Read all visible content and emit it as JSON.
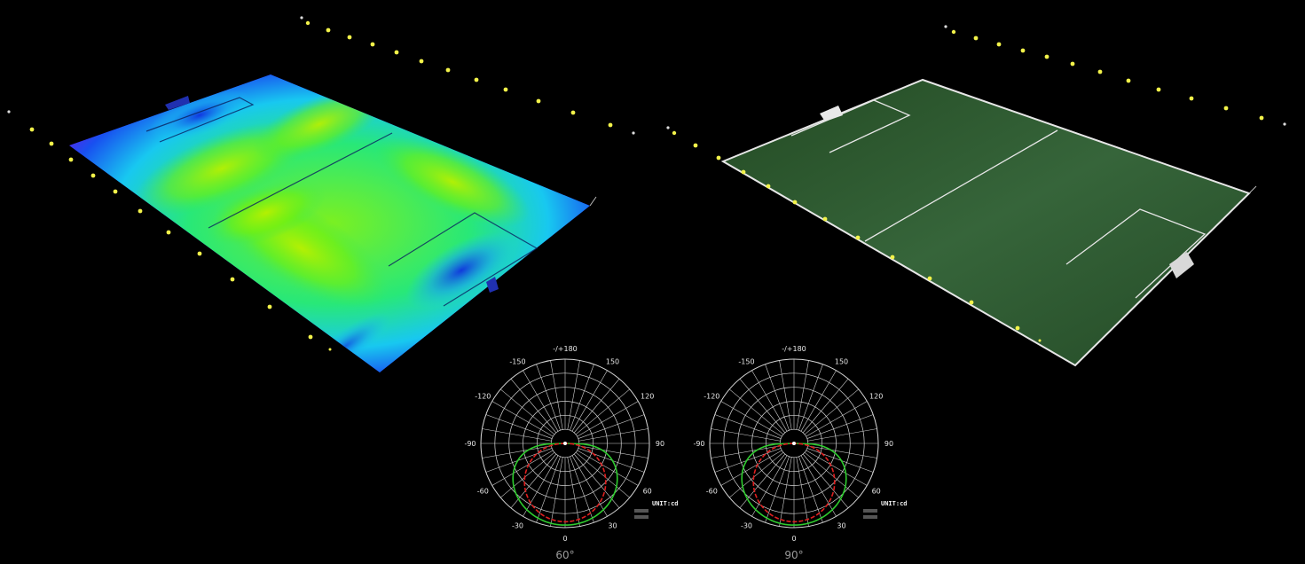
{
  "views": {
    "heatmap": {
      "title": "",
      "floodlight_color": "#f2f24a"
    },
    "render": {
      "title": "",
      "turf_color": "#2f5a2f",
      "line_color": "#e6e6e6",
      "floodlight_color": "#f2f24a"
    }
  },
  "chart_data": [
    {
      "type": "polar",
      "caption": "60°",
      "unit_label": "UNIT:cd",
      "angle_labels": [
        "-/+180",
        "150",
        "120",
        "90",
        "60",
        "30",
        "0",
        "-30",
        "-60",
        "-90",
        "-120",
        "-150"
      ],
      "curves": [
        {
          "color": "#2ecc2e",
          "shape": "wide-lobe"
        },
        {
          "color": "#e02020",
          "shape": "narrow-lobe"
        }
      ]
    },
    {
      "type": "polar",
      "caption": "90°",
      "unit_label": "UNIT:cd",
      "angle_labels": [
        "-/+180",
        "150",
        "120",
        "90",
        "60",
        "30",
        "0",
        "-30",
        "-60",
        "-90",
        "-120",
        "-150"
      ],
      "curves": [
        {
          "color": "#2ecc2e",
          "shape": "wide-lobe"
        },
        {
          "color": "#e02020",
          "shape": "narrow-lobe"
        }
      ]
    }
  ]
}
